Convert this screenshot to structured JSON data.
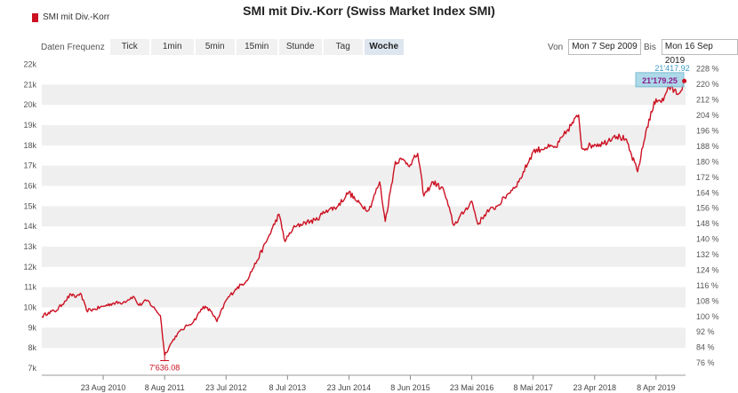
{
  "title": "SMI mit Div.-Korr (Swiss Market Index SMI)",
  "legend_label": "SMI mit Div.-Korr",
  "toolbar": {
    "frequency_label": "Daten Frequenz",
    "buttons": [
      "Tick",
      "1min",
      "5min",
      "15min",
      "Stunde",
      "Tag",
      "Woche"
    ],
    "active": "Woche"
  },
  "range": {
    "from_label": "Von",
    "from_value": "Mon 7 Sep 2009",
    "to_label": "Bis",
    "to_value": "Mon 16 Sep 2019"
  },
  "colors": {
    "series": "#cc1122",
    "band": "#efefef",
    "annotation": "#8b1a8b",
    "last_box": "#9fd3e6"
  },
  "chart_data": {
    "type": "line",
    "series": [
      {
        "name": "SMI mit Div.-Korr",
        "points": [
          [
            "2009-09-07",
            9550
          ],
          [
            "2009-10-15",
            9750
          ],
          [
            "2009-12-01",
            9850
          ],
          [
            "2010-01-15",
            10300
          ],
          [
            "2010-02-20",
            10650
          ],
          [
            "2010-03-15",
            10500
          ],
          [
            "2010-04-15",
            10700
          ],
          [
            "2010-05-20",
            9850
          ],
          [
            "2010-07-01",
            9900
          ],
          [
            "2010-08-23",
            10050
          ],
          [
            "2010-10-15",
            10200
          ],
          [
            "2010-12-15",
            10250
          ],
          [
            "2011-02-10",
            10550
          ],
          [
            "2011-03-15",
            10100
          ],
          [
            "2011-05-01",
            10350
          ],
          [
            "2011-06-15",
            9900
          ],
          [
            "2011-07-15",
            9600
          ],
          [
            "2011-08-08",
            7636.08
          ],
          [
            "2011-09-15",
            8250
          ],
          [
            "2011-10-20",
            8700
          ],
          [
            "2011-12-15",
            9100
          ],
          [
            "2012-01-20",
            9300
          ],
          [
            "2012-03-15",
            10050
          ],
          [
            "2012-05-01",
            9800
          ],
          [
            "2012-06-01",
            9300
          ],
          [
            "2012-07-23",
            10350
          ],
          [
            "2012-09-15",
            10900
          ],
          [
            "2012-11-15",
            11300
          ],
          [
            "2013-01-15",
            12300
          ],
          [
            "2013-03-15",
            13350
          ],
          [
            "2013-05-20",
            14600
          ],
          [
            "2013-06-24",
            13250
          ],
          [
            "2013-08-08",
            13900
          ],
          [
            "2013-10-15",
            14200
          ],
          [
            "2013-12-15",
            14300
          ],
          [
            "2014-02-15",
            14800
          ],
          [
            "2014-04-15",
            14950
          ],
          [
            "2014-06-23",
            15700
          ],
          [
            "2014-08-10",
            15200
          ],
          [
            "2014-10-15",
            14800
          ],
          [
            "2014-12-15",
            16200
          ],
          [
            "2015-01-16",
            14250
          ],
          [
            "2015-03-15",
            17200
          ],
          [
            "2015-04-20",
            17300
          ],
          [
            "2015-06-08",
            17050
          ],
          [
            "2015-07-20",
            17600
          ],
          [
            "2015-08-24",
            15500
          ],
          [
            "2015-10-15",
            16200
          ],
          [
            "2015-12-15",
            15800
          ],
          [
            "2016-02-10",
            14050
          ],
          [
            "2016-04-15",
            14800
          ],
          [
            "2016-05-23",
            15250
          ],
          [
            "2016-06-27",
            14100
          ],
          [
            "2016-08-15",
            14700
          ],
          [
            "2016-10-15",
            15000
          ],
          [
            "2016-12-15",
            15600
          ],
          [
            "2017-02-15",
            16200
          ],
          [
            "2017-05-08",
            17700
          ],
          [
            "2017-07-15",
            17900
          ],
          [
            "2017-09-15",
            17900
          ],
          [
            "2017-11-15",
            18700
          ],
          [
            "2018-01-22",
            19500
          ],
          [
            "2018-02-09",
            17850
          ],
          [
            "2018-04-23",
            18050
          ],
          [
            "2018-06-15",
            18100
          ],
          [
            "2018-08-15",
            18500
          ],
          [
            "2018-10-15",
            18300
          ],
          [
            "2018-12-24",
            16700
          ],
          [
            "2019-02-15",
            18900
          ],
          [
            "2019-04-08",
            20300
          ],
          [
            "2019-05-20",
            20200
          ],
          [
            "2019-06-15",
            20900
          ],
          [
            "2019-08-15",
            20550
          ],
          [
            "2019-09-16",
            21179.25
          ]
        ]
      }
    ],
    "x_ticks": [
      "23 Aug 2010",
      "8 Aug 2011",
      "23 Jul 2012",
      "8 Jul 2013",
      "23 Jun 2014",
      "8 Jun 2015",
      "23 Mai 2016",
      "8 Mai 2017",
      "23 Apr 2018",
      "8 Apr 2019"
    ],
    "y_ticks": [
      "7k",
      "8k",
      "9k",
      "10k",
      "11k",
      "12k",
      "13k",
      "14k",
      "15k",
      "16k",
      "17k",
      "18k",
      "19k",
      "20k",
      "21k",
      "22k"
    ],
    "y_right_ticks": [
      "76 %",
      "84 %",
      "92 %",
      "100 %",
      "108 %",
      "116 %",
      "124 %",
      "132 %",
      "140 %",
      "148 %",
      "156 %",
      "164 %",
      "172 %",
      "180 %",
      "188 %",
      "196 %",
      "204 %",
      "212 %",
      "220 %",
      "228 %"
    ],
    "ylim": [
      6650,
      22200
    ],
    "xlim": [
      "2009-09-07",
      "2019-09-23"
    ],
    "annotations": {
      "min_label": "7'636.08",
      "max_label": "21'417.92",
      "last_label": "21'179.25"
    },
    "grid": "alternating horizontal bands"
  }
}
